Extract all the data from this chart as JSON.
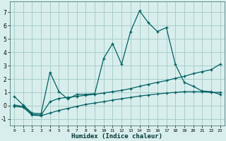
{
  "xlabel": "Humidex (Indice chaleur)",
  "background_color": "#d8eeed",
  "grid_color": "#a8ccca",
  "line_color": "#006060",
  "xlim": [
    -0.5,
    23.5
  ],
  "ylim": [
    -1.5,
    7.8
  ],
  "xticks": [
    0,
    1,
    2,
    3,
    4,
    5,
    6,
    7,
    8,
    9,
    10,
    11,
    12,
    13,
    14,
    15,
    16,
    17,
    18,
    19,
    20,
    21,
    22,
    23
  ],
  "yticks": [
    -1,
    0,
    1,
    2,
    3,
    4,
    5,
    6,
    7
  ],
  "series1_x": [
    0,
    1,
    2,
    3,
    4,
    5,
    6,
    7,
    8,
    9,
    10,
    11,
    12,
    13,
    14,
    15,
    16,
    17,
    18,
    19,
    20,
    21,
    22,
    23
  ],
  "series1_y": [
    0.7,
    0.05,
    -0.55,
    -0.6,
    2.5,
    1.05,
    0.5,
    0.85,
    0.85,
    0.9,
    3.55,
    4.65,
    3.1,
    5.55,
    7.1,
    6.2,
    5.55,
    5.85,
    3.1,
    1.75,
    1.45,
    1.1,
    1.05,
    0.85
  ],
  "series2_x": [
    0,
    1,
    2,
    3,
    4,
    5,
    6,
    7,
    8,
    9,
    10,
    11,
    12,
    13,
    14,
    15,
    16,
    17,
    18,
    19,
    20,
    21,
    22,
    23
  ],
  "series2_y": [
    0.05,
    -0.05,
    -0.65,
    -0.7,
    0.3,
    0.55,
    0.62,
    0.7,
    0.78,
    0.85,
    0.95,
    1.05,
    1.15,
    1.28,
    1.45,
    1.6,
    1.75,
    1.88,
    2.05,
    2.2,
    2.4,
    2.55,
    2.7,
    3.1
  ],
  "series3_x": [
    0,
    1,
    2,
    3,
    4,
    5,
    6,
    7,
    8,
    9,
    10,
    11,
    12,
    13,
    14,
    15,
    16,
    17,
    18,
    19,
    20,
    21,
    22,
    23
  ],
  "series3_y": [
    -0.05,
    -0.12,
    -0.7,
    -0.75,
    -0.55,
    -0.35,
    -0.2,
    -0.05,
    0.1,
    0.2,
    0.3,
    0.42,
    0.52,
    0.62,
    0.72,
    0.8,
    0.88,
    0.94,
    1.0,
    1.05,
    1.05,
    1.05,
    1.0,
    1.0
  ],
  "marker": "+"
}
